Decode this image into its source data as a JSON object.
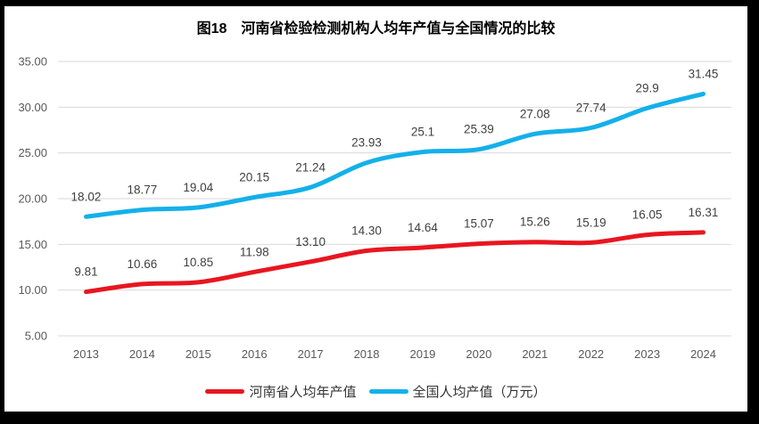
{
  "chart_data": {
    "type": "line",
    "title": "图18　河南省检验检测机构人均年产值与全国情况的比较",
    "categories": [
      "2013",
      "2014",
      "2015",
      "2016",
      "2017",
      "2018",
      "2019",
      "2020",
      "2021",
      "2022",
      "2023",
      "2024"
    ],
    "series": [
      {
        "name": "河南省人均年产值",
        "color": "#e81620",
        "values": [
          9.81,
          10.66,
          10.85,
          11.98,
          13.1,
          14.3,
          14.64,
          15.07,
          15.26,
          15.19,
          16.05,
          16.31
        ],
        "labels": [
          "9.81",
          "10.66",
          "10.85",
          "11.98",
          "13.10",
          "14.30",
          "14.64",
          "15.07",
          "15.26",
          "15.19",
          "16.05",
          "16.31"
        ]
      },
      {
        "name": "全国人均产值（万元）",
        "color": "#14b0ea",
        "values": [
          18.02,
          18.77,
          19.04,
          20.15,
          21.24,
          23.93,
          25.1,
          25.39,
          27.08,
          27.74,
          29.9,
          31.45
        ],
        "labels": [
          "18.02",
          "18.77",
          "19.04",
          "20.15",
          "21.24",
          "23.93",
          "25.1",
          "25.39",
          "27.08",
          "27.74",
          "29.9",
          "31.45"
        ]
      }
    ],
    "xlabel": "",
    "ylabel": "",
    "ylim": [
      5,
      35
    ],
    "ytick_step": 5,
    "ytick_labels": [
      "5.00",
      "10.00",
      "15.00",
      "20.00",
      "25.00",
      "30.00",
      "35.00"
    ],
    "grid": "horizontal",
    "legend_position": "bottom",
    "line_style": "smooth",
    "colors": {
      "gridline": "#d9d9d9",
      "axis_text": "#595959",
      "data_label": "#404040",
      "chart_background": "#ffffff",
      "outer_border": "#000000"
    }
  }
}
